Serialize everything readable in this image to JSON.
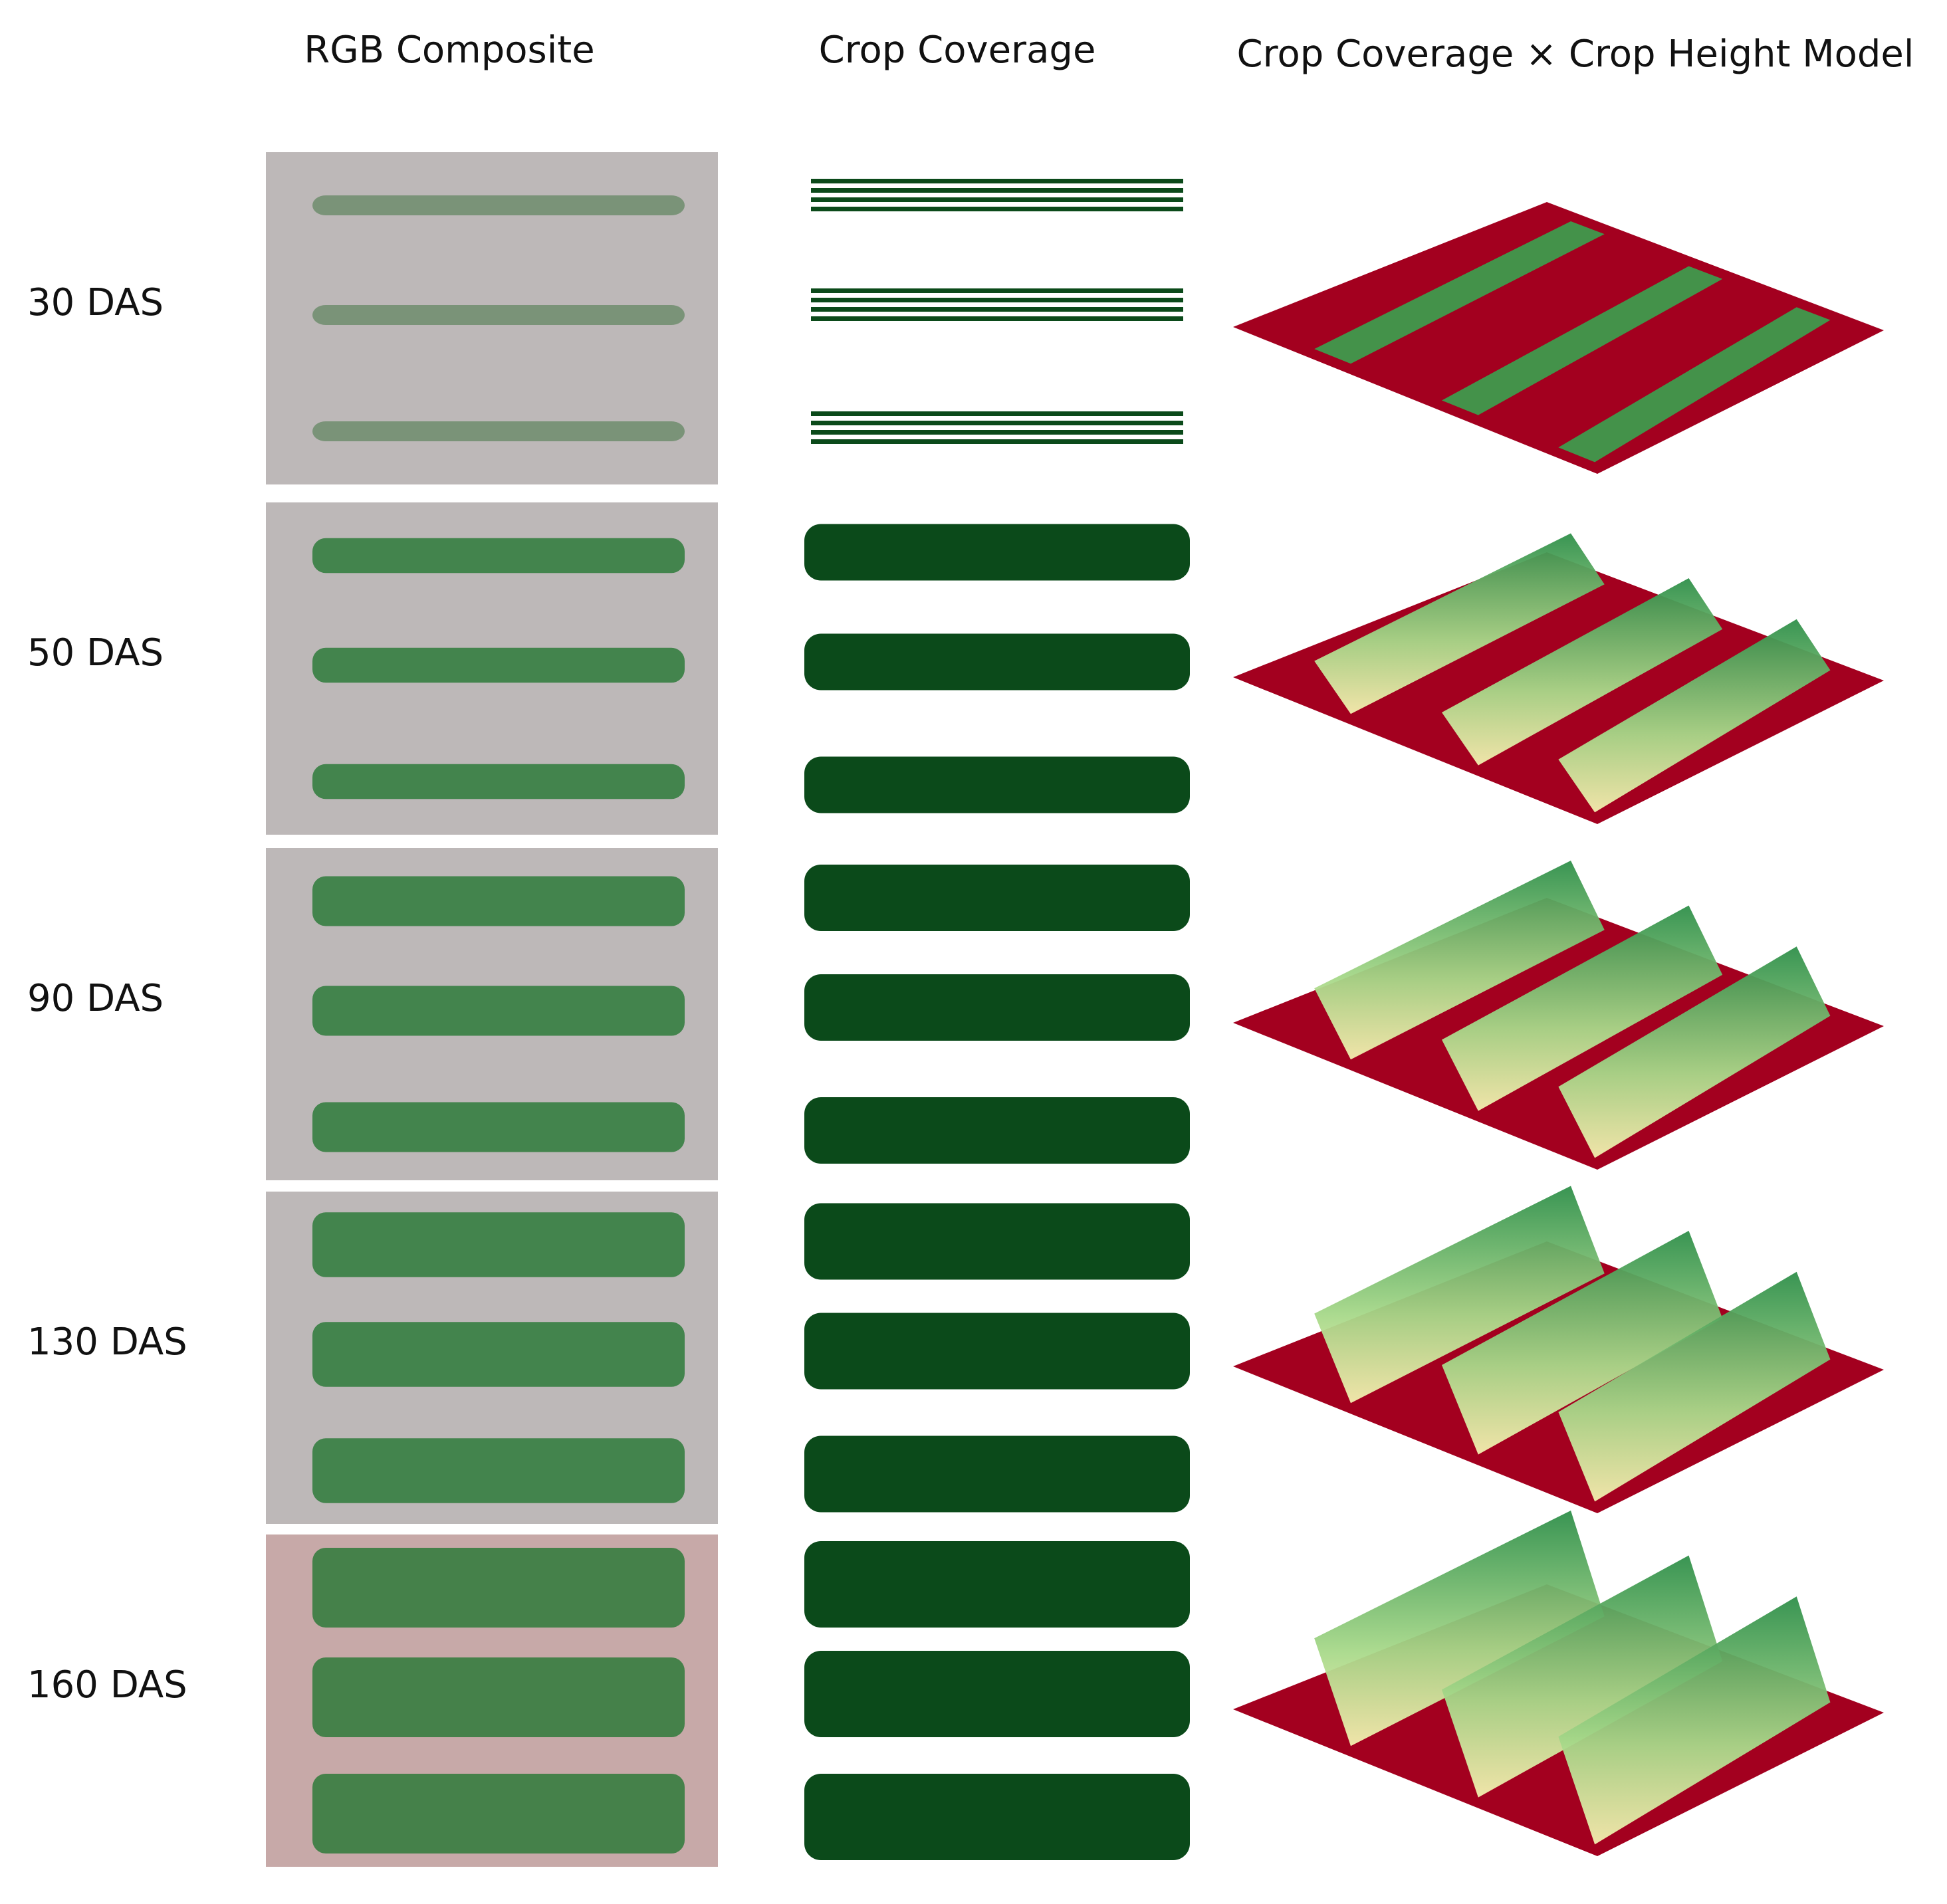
{
  "headers": [
    "RGB Composite",
    "Crop Coverage",
    "Crop Coverage × Crop Height Model"
  ],
  "row_labels": [
    "30 DAS",
    "50 DAS",
    "90 DAS",
    "130 DAS",
    "160 DAS"
  ]
}
